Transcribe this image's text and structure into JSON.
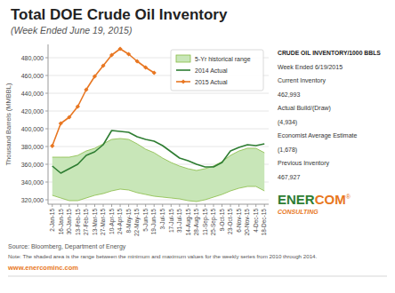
{
  "chart_data": {
    "type": "line",
    "title": "Total DOE Crude Oil Inventory",
    "subtitle": "(Week Ended June 19, 2015)",
    "y_label": "Thousand Barrels (MMBBL)",
    "categories": [
      "2-Jan-15",
      "16-Jan-15",
      "30-Jan-15",
      "13-Feb-15",
      "27-Feb-15",
      "13-Mar-15",
      "27-Mar-15",
      "10-Apr-15",
      "24-Apr-15",
      "8-May-15",
      "22-May-15",
      "5-Jun-15",
      "19-Jun-15",
      "3-Jul-15",
      "17-Jul-15",
      "31-Jul-15",
      "14-Aug-15",
      "28-Aug-15",
      "11-Sep-15",
      "25-Sep-15",
      "9-Oct-15",
      "23-Oct-15",
      "6-Nov-15",
      "20-Nov-15",
      "4-Dec-15",
      "18-Dec-15"
    ],
    "series": [
      {
        "name": "5-Yr historical range",
        "type": "band",
        "color": "#C8E6B8",
        "edge_color": "#88BB44",
        "lower": [
          325000,
          322000,
          319000,
          319000,
          322000,
          325000,
          327000,
          330000,
          332000,
          331000,
          328000,
          326000,
          324000,
          323000,
          322000,
          321000,
          319000,
          318000,
          320000,
          323000,
          326000,
          330000,
          333000,
          335000,
          335000,
          330000
        ],
        "upper": [
          368000,
          368000,
          368000,
          370000,
          375000,
          378000,
          383000,
          388000,
          389000,
          388000,
          383000,
          377000,
          373000,
          367000,
          362000,
          358000,
          355000,
          353000,
          355000,
          358000,
          363000,
          370000,
          375000,
          378000,
          378000,
          373000
        ]
      },
      {
        "name": "2014 Actual",
        "type": "line",
        "color": "#2E7D32",
        "values": [
          358000,
          350000,
          355000,
          360000,
          370000,
          374000,
          382000,
          398000,
          397000,
          396000,
          391000,
          388000,
          386000,
          381000,
          374000,
          367000,
          364000,
          360000,
          357000,
          357000,
          362000,
          375000,
          379000,
          382000,
          381000,
          383000
        ]
      },
      {
        "name": "2015 Actual",
        "type": "line",
        "color": "#E87722",
        "marker": "diamond",
        "values": [
          380700,
          406000,
          413000,
          425000,
          444000,
          459000,
          471000,
          483000,
          490000,
          484000,
          476000,
          469000,
          463000,
          null,
          null,
          null,
          null,
          null,
          null,
          null,
          null,
          null,
          null,
          null,
          null,
          null
        ]
      }
    ],
    "ylim": [
      315000,
      495000
    ],
    "yticks": [
      {
        "value": 320000,
        "label": "320,000"
      },
      {
        "value": 340000,
        "label": "340,000"
      },
      {
        "value": 360000,
        "label": "360,000"
      },
      {
        "value": 380000,
        "label": "380,000"
      },
      {
        "value": 400000,
        "label": "400,000"
      },
      {
        "value": 420000,
        "label": "420,000"
      },
      {
        "value": 440000,
        "label": "440,000"
      },
      {
        "value": 460000,
        "label": "460,000"
      },
      {
        "value": 480000,
        "label": "480,000"
      }
    ],
    "grid": true,
    "legend": "upper right",
    "annotation_title": "CRUDE OIL INVENTORY/1000 BBLS",
    "annotations": [
      "Week Ended 6/19/2015",
      "Current Inventory",
      "462,993",
      "Actual Build/(Draw)",
      "(4,934)",
      "Economist Average Estimate",
      "(1,678)",
      "Previous Inventory",
      "467,927"
    ],
    "source": "Source: Bloomberg, Department of Energy",
    "note": "Note: The shaded area is the range between the minimum and maximum values for the weekly series from 2010 through 2014.",
    "url": "www.enercominc.com",
    "logo": [
      "ENER",
      "COM",
      "®",
      "CONSULTING"
    ]
  }
}
